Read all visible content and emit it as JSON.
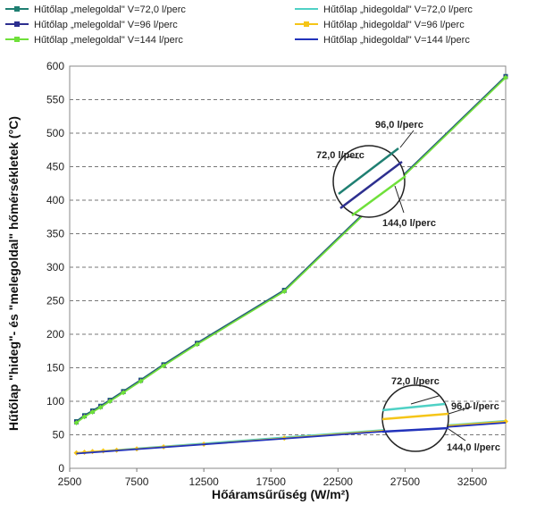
{
  "chart_data": {
    "type": "line",
    "title": "",
    "xlabel": "Hőáramsűrűség (W/m²)",
    "ylabel": "Hűtőlap \"hideg\"- és \"melegoldal\" hőmérsékletek (°C)",
    "xlim": [
      2500,
      35000
    ],
    "ylim": [
      0,
      600
    ],
    "xticks": [
      2500,
      7500,
      12500,
      17500,
      22500,
      27500,
      32500
    ],
    "yticks": [
      0,
      50,
      100,
      150,
      200,
      250,
      300,
      350,
      400,
      450,
      500,
      550,
      600
    ],
    "grid": "horizontal dashed",
    "legend_position": "top",
    "series": [
      {
        "name": "Hűtőlap „melegoldal\" V=72,0 l/perc",
        "color": "#1f7f72",
        "marker": "square",
        "x": [
          3000,
          3600,
          4200,
          4800,
          5500,
          6500,
          7800,
          9500,
          12000,
          18500,
          35000
        ],
        "y": [
          70,
          79,
          86,
          93,
          102,
          115,
          132,
          155,
          187,
          266,
          585
        ]
      },
      {
        "name": "Hűtőlap „hidegoldal\" V=72,0 l/perc",
        "color": "#4fd1c5",
        "marker": "none",
        "x": [
          3000,
          35000
        ],
        "y": [
          23,
          71
        ]
      },
      {
        "name": "Hűtőlap „melegoldal\" V=96 l/perc",
        "color": "#2d2f8f",
        "marker": "square",
        "x": [
          3000,
          3600,
          4200,
          4800,
          5500,
          6500,
          7800,
          9500,
          12000,
          18500,
          35000
        ],
        "y": [
          69,
          78,
          85,
          92,
          101,
          114,
          131,
          154,
          186,
          265,
          584
        ]
      },
      {
        "name": "Hűtőlap „hidegoldal\" V=96 l/perc",
        "color": "#f5c518",
        "marker": "diamond",
        "x": [
          3000,
          3600,
          4200,
          5000,
          6000,
          7500,
          9500,
          12500,
          18500,
          35000
        ],
        "y": [
          23,
          24,
          25,
          26,
          27,
          29,
          32,
          36,
          45,
          70
        ]
      },
      {
        "name": "Hűtőlap „melegoldal\" V=144 l/perc",
        "color": "#6fe03a",
        "marker": "diamond",
        "x": [
          3000,
          3600,
          4200,
          4800,
          5500,
          6500,
          7800,
          9500,
          12000,
          18500,
          35000
        ],
        "y": [
          68,
          77,
          84,
          91,
          100,
          113,
          130,
          153,
          185,
          264,
          583
        ]
      },
      {
        "name": "Hűtőlap „hidegoldal\" V=144 l/perc",
        "color": "#2233bb",
        "marker": "none",
        "x": [
          3000,
          35000
        ],
        "y": [
          22,
          68
        ]
      }
    ],
    "annotations": {
      "upper": [
        "96,0 l/perc",
        "72,0 l/perc",
        "144,0 l/perc"
      ],
      "lower": [
        "72,0 l/perc",
        "96,0 l/perc",
        "144,0 l/perc"
      ]
    }
  }
}
